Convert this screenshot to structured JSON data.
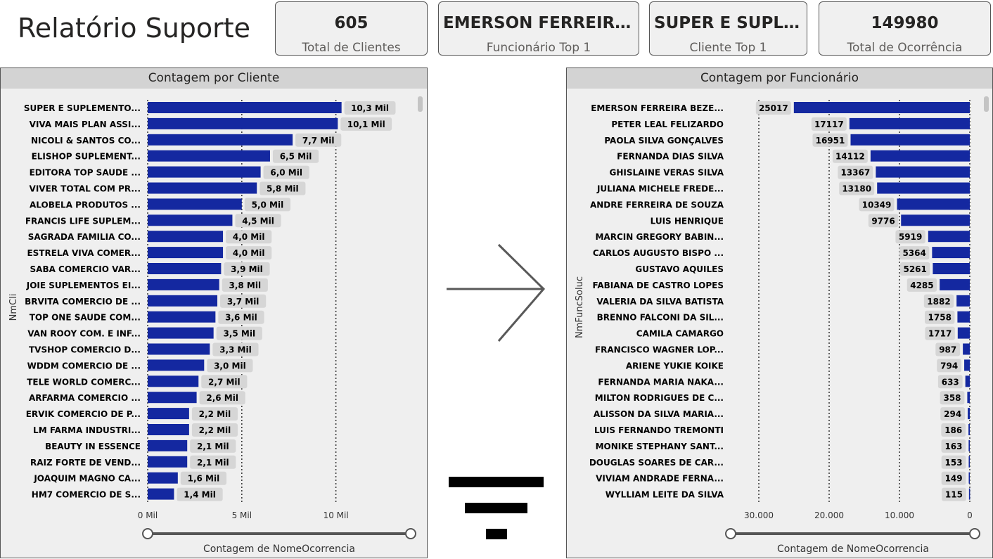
{
  "page": {
    "title": "Relatório Suporte"
  },
  "kpis": [
    {
      "value": "605",
      "label": "Total de Clientes"
    },
    {
      "value": "EMERSON FERREIRA BEZERRA",
      "label": "Funcionário Top 1"
    },
    {
      "value": "SUPER E SUPLEMENTOS",
      "label": "Cliente Top 1"
    },
    {
      "value": "149980",
      "label": "Total de Ocorrência"
    }
  ],
  "chart_data": [
    {
      "type": "bar",
      "orientation": "horizontal",
      "title": "Contagem por Cliente",
      "xlabel": "Contagem de NomeOcorrencia",
      "ylabel": "NmCli",
      "xlim": [
        0,
        11000
      ],
      "xticks": [
        0,
        5000,
        10000
      ],
      "xtick_labels": [
        "0 Mil",
        "5 Mil",
        "10 Mil"
      ],
      "categories": [
        "SUPER E SUPLEMENTO...",
        "VIVA MAIS PLAN ASSI...",
        "NICOLI & SANTOS CO...",
        "ELISHOP SUPLEMENT...",
        "EDITORA TOP SAUDE ...",
        "VIVER TOTAL COM PR...",
        "ALOBELA PRODUTOS ...",
        "FRANCIS LIFE SUPLEM...",
        "SAGRADA FAMILIA CO...",
        "ESTRELA VIVA COMER...",
        "SABA COMERCIO VAR...",
        "JOIE SUPLEMENTOS EI...",
        "BRVITA COMERCIO DE ...",
        "TOP ONE SAUDE COM...",
        "VAN ROOY COM. E INF...",
        "TVSHOP COMERCIO D...",
        "WDDM COMERCIO DE ...",
        "TELE WORLD COMERC...",
        "ARFARMA COMERCIO ...",
        "ERVIK COMERCIO DE P...",
        "LM FARMA INDUSTRI...",
        "BEAUTY IN ESSENCE",
        "RAIZ FORTE DE VEND...",
        "JOAQUIM MAGNO CA...",
        "HM7 COMERCIO DE S..."
      ],
      "values": [
        10300,
        10100,
        7700,
        6500,
        6000,
        5800,
        5000,
        4500,
        4000,
        4000,
        3900,
        3800,
        3700,
        3600,
        3500,
        3300,
        3000,
        2700,
        2600,
        2200,
        2200,
        2100,
        2100,
        1600,
        1400
      ],
      "data_labels": [
        "10,3 Mil",
        "10,1 Mil",
        "7,7 Mil",
        "6,5 Mil",
        "6,0 Mil",
        "5,8 Mil",
        "5,0 Mil",
        "4,5 Mil",
        "4,0 Mil",
        "4,0 Mil",
        "3,9 Mil",
        "3,8 Mil",
        "3,7 Mil",
        "3,6 Mil",
        "3,5 Mil",
        "3,3 Mil",
        "3,0 Mil",
        "2,7 Mil",
        "2,6 Mil",
        "2,2 Mil",
        "2,2 Mil",
        "2,1 Mil",
        "2,1 Mil",
        "1,6 Mil",
        "1,4 Mil"
      ],
      "bar_color": "#1428a0"
    },
    {
      "type": "bar",
      "orientation": "horizontal",
      "reversed_axis": true,
      "title": "Contagem por Funcionário",
      "xlabel": "Contagem de NomeOcorrencia",
      "ylabel": "NmFuncSoluc",
      "xlim": [
        0,
        33000
      ],
      "xticks": [
        30000,
        20000,
        10000,
        0
      ],
      "xtick_labels": [
        "30.000",
        "20.000",
        "10.000",
        "0"
      ],
      "categories": [
        "EMERSON FERREIRA BEZE...",
        "PETER LEAL FELIZARDO",
        "PAOLA SILVA GONÇALVES",
        "FERNANDA DIAS SILVA",
        "GHISLAINE VERAS SILVA",
        "JULIANA MICHELE FREDE...",
        "ANDRE FERREIRA DE SOUZA",
        "LUIS HENRIQUE",
        "MARCIN GREGORY BABIN...",
        "CARLOS AUGUSTO BISPO ...",
        "GUSTAVO AQUILES",
        "FABIANA DE CASTRO LOPES",
        "VALERIA DA SILVA BATISTA",
        "BRENNO FALCONI DA SIL...",
        "CAMILA CAMARGO",
        "FRANCISCO WAGNER LOP...",
        "ARIENE YUKIE KOIKE",
        "FERNANDA MARIA NAKA...",
        "MILTON RODRIGUES DE C...",
        "ALISSON DA SILVA MARIA...",
        "LUIS FERNANDO TREMONTI",
        "MONIKE STEPHANY SANT...",
        "DOUGLAS SOARES DE CAR...",
        "VIVIAM ANDRADE FERNA...",
        "WYLLIAM LEITE DA SILVA"
      ],
      "values": [
        25017,
        17117,
        16951,
        14112,
        13367,
        13180,
        10349,
        9776,
        5919,
        5364,
        5261,
        4285,
        1882,
        1758,
        1717,
        987,
        794,
        633,
        358,
        294,
        186,
        163,
        153,
        149,
        115
      ],
      "data_labels": [
        "25017",
        "17117",
        "16951",
        "14112",
        "13367",
        "13180",
        "10349",
        "9776",
        "5919",
        "5364",
        "5261",
        "4285",
        "1882",
        "1758",
        "1717",
        "987",
        "794",
        "633",
        "358",
        "294",
        "186",
        "163",
        "153",
        "149",
        "115"
      ],
      "bar_color": "#1428a0"
    }
  ]
}
